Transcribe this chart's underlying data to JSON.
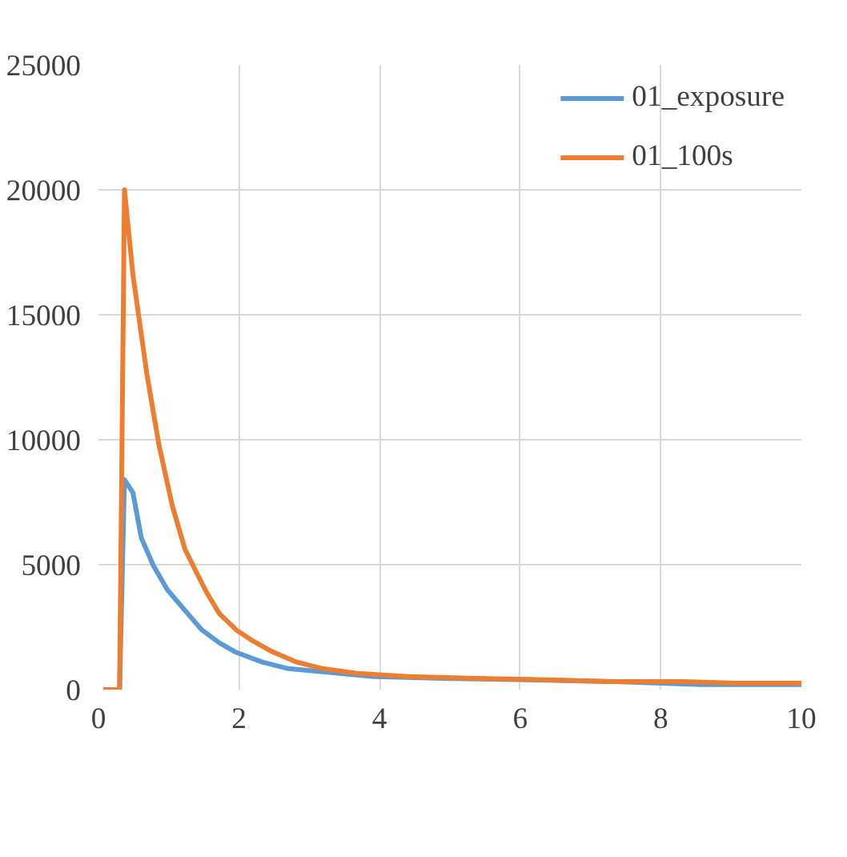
{
  "chart_data": {
    "type": "line",
    "xlim": [
      0,
      10
    ],
    "xticks": [
      0,
      2,
      4,
      6,
      8,
      10
    ],
    "ylim": [
      0,
      25000
    ],
    "yticks": [
      0,
      5000,
      10000,
      15000,
      20000,
      25000
    ],
    "grid": true,
    "legend": "top right",
    "marker": "none",
    "line_style": "solid",
    "series": [
      {
        "name": "01_exposure",
        "color": "#5b9bd5",
        "x": [
          0.07,
          0.2,
          0.3,
          0.37,
          0.49,
          0.61,
          0.78,
          0.98,
          1.23,
          1.47,
          1.72,
          1.96,
          2.33,
          2.7,
          3.19,
          3.92,
          4.9,
          6.13,
          7.35,
          8.58,
          10
        ],
        "values": [
          0,
          0,
          0,
          8400,
          7880,
          6070,
          4970,
          4000,
          3170,
          2390,
          1870,
          1490,
          1100,
          840,
          710,
          520,
          450,
          390,
          320,
          200,
          200
        ]
      },
      {
        "name": "01_100s",
        "color": "#ed7d31",
        "x": [
          0.07,
          0.2,
          0.3,
          0.37,
          0.49,
          0.69,
          0.86,
          1.05,
          1.23,
          1.4,
          1.54,
          1.72,
          1.96,
          2.2,
          2.45,
          2.82,
          3.19,
          3.68,
          4.41,
          5.39,
          6.37,
          7.35,
          8.33,
          9.07,
          10
        ],
        "values": [
          0,
          0,
          0,
          20000,
          16600,
          12600,
          9800,
          7360,
          5620,
          4650,
          3880,
          3040,
          2390,
          1940,
          1550,
          1100,
          840,
          650,
          520,
          450,
          390,
          320,
          320,
          260,
          260
        ]
      }
    ]
  }
}
